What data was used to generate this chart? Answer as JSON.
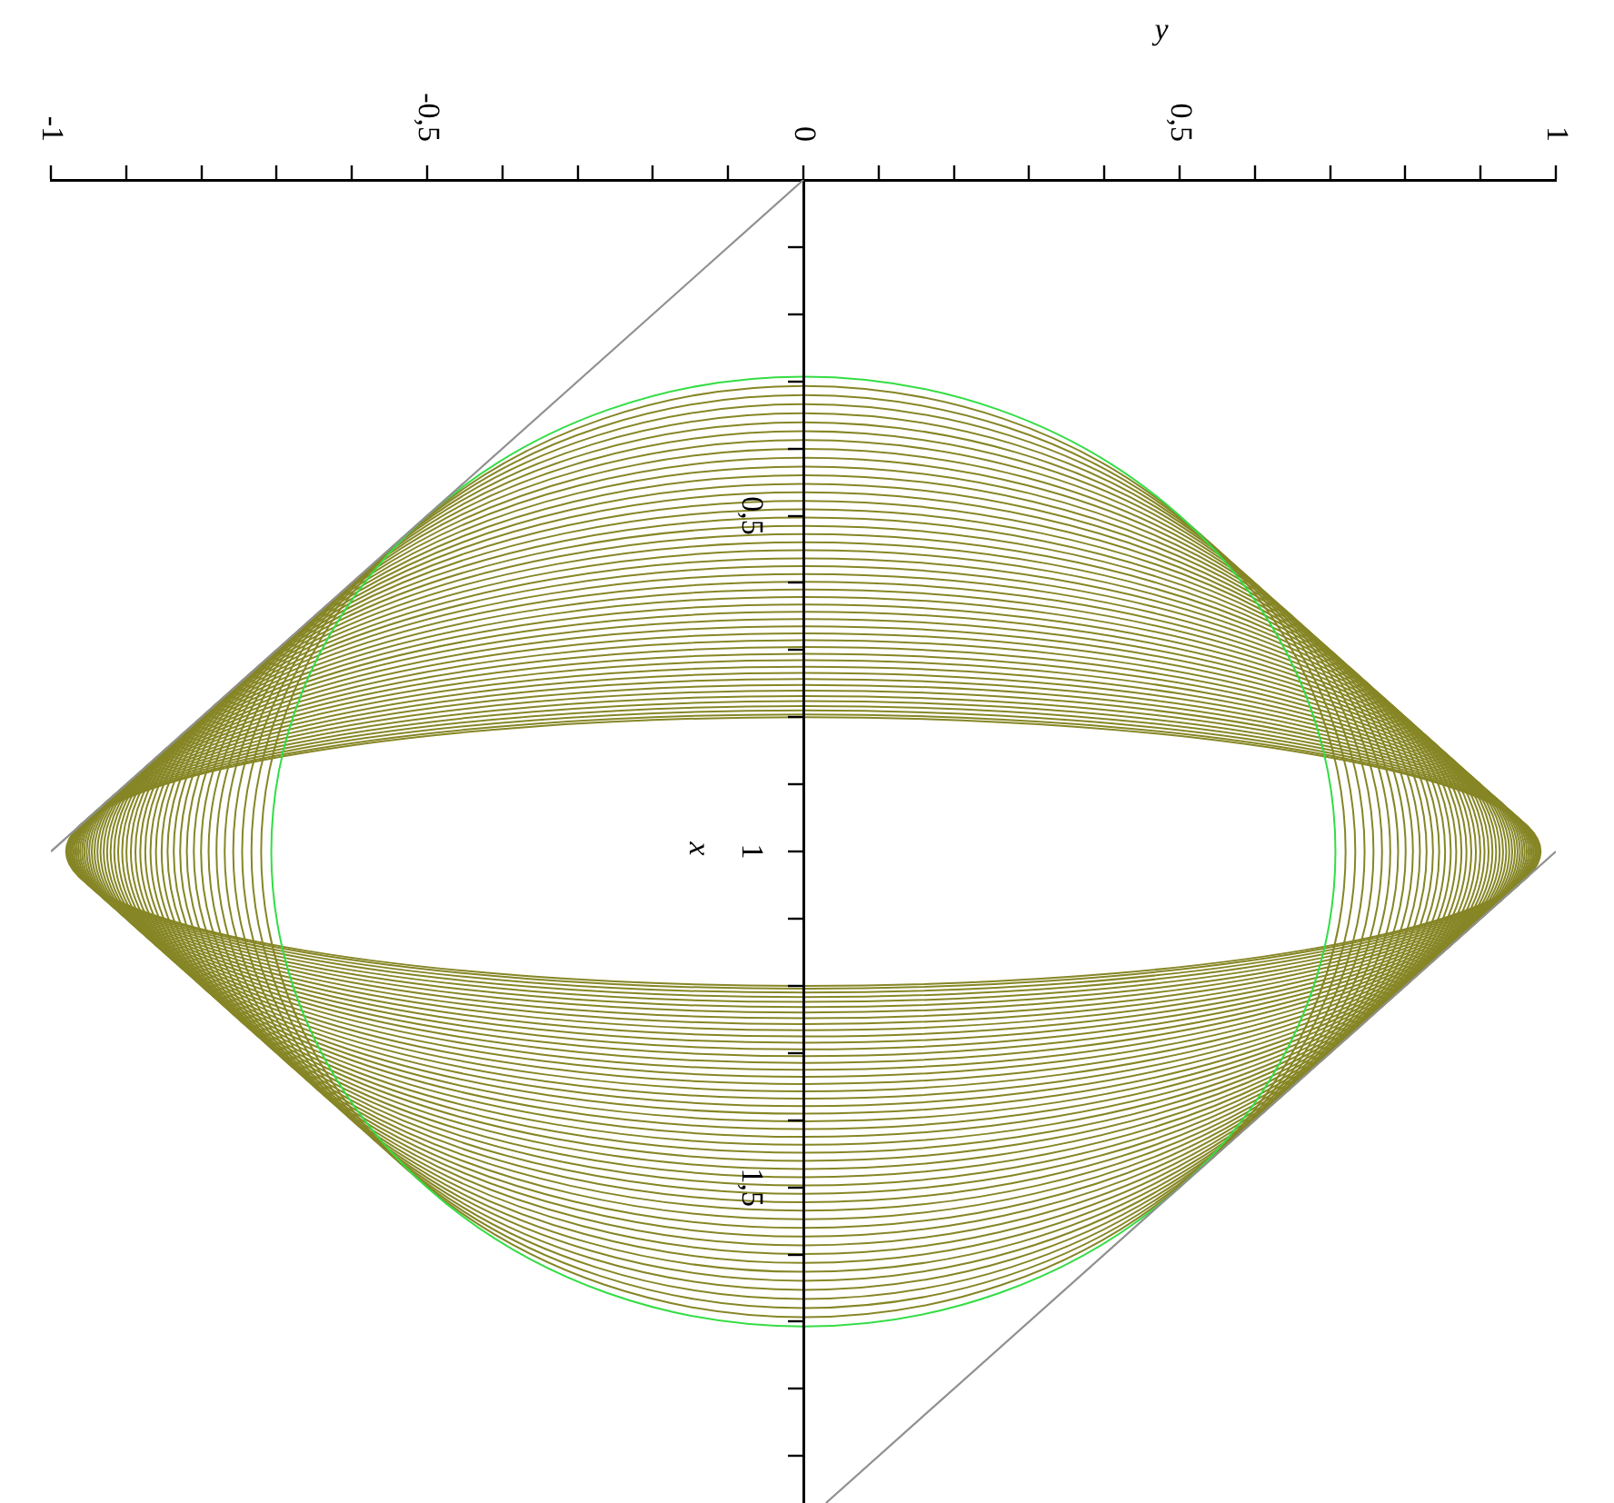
{
  "chart_data": {
    "type": "line",
    "xlabel": "y",
    "ylabel": "x",
    "xlim": [
      -1,
      1
    ],
    "ylim": [
      1.97,
      0
    ],
    "xticks": [
      -1,
      {
        "value": -0.9,
        "label": null
      },
      {
        "value": -0.8,
        "label": null
      },
      {
        "value": -0.7,
        "label": null
      },
      {
        "value": -0.6,
        "label": null
      },
      {
        "value": -0.5,
        "label": "-0,5"
      },
      {
        "value": -0.4,
        "label": null
      },
      {
        "value": -0.3,
        "label": null
      },
      {
        "value": -0.2,
        "label": null
      },
      {
        "value": -0.1,
        "label": null
      },
      0,
      {
        "value": 0.1,
        "label": null
      },
      {
        "value": 0.2,
        "label": null
      },
      {
        "value": 0.3,
        "label": null
      },
      {
        "value": 0.4,
        "label": null
      },
      {
        "value": 0.5,
        "label": "0,5"
      },
      {
        "value": 0.6,
        "label": null
      },
      {
        "value": 0.7,
        "label": null
      },
      {
        "value": 0.8,
        "label": null
      },
      {
        "value": 0.9,
        "label": null
      },
      1
    ],
    "yticks": [
      {
        "value": 0.1,
        "label": null
      },
      {
        "value": 0.2,
        "label": null
      },
      {
        "value": 0.3,
        "label": null
      },
      {
        "value": 0.4,
        "label": null
      },
      {
        "value": 0.5,
        "label": "0,5"
      },
      {
        "value": 0.6,
        "label": null
      },
      {
        "value": 0.7,
        "label": null
      },
      {
        "value": 0.8,
        "label": null
      },
      {
        "value": 0.9,
        "label": null
      },
      1,
      {
        "value": 1.1,
        "label": null
      },
      {
        "value": 1.2,
        "label": null
      },
      {
        "value": 1.3,
        "label": null
      },
      {
        "value": 1.4,
        "label": null
      },
      {
        "value": 1.5,
        "label": "1,5"
      },
      {
        "value": 1.6,
        "label": null
      },
      {
        "value": 1.7,
        "label": null
      },
      {
        "value": 1.8,
        "label": null
      },
      {
        "value": 1.9,
        "label": null
      }
    ],
    "series": [
      {
        "color": "#909090",
        "x": [
          0,
          -1
        ],
        "values": [
          0,
          1
        ]
      },
      {
        "color": "#909090",
        "x": [
          1,
          0.03
        ],
        "values": [
          1,
          1.97
        ]
      }
    ]
  }
}
